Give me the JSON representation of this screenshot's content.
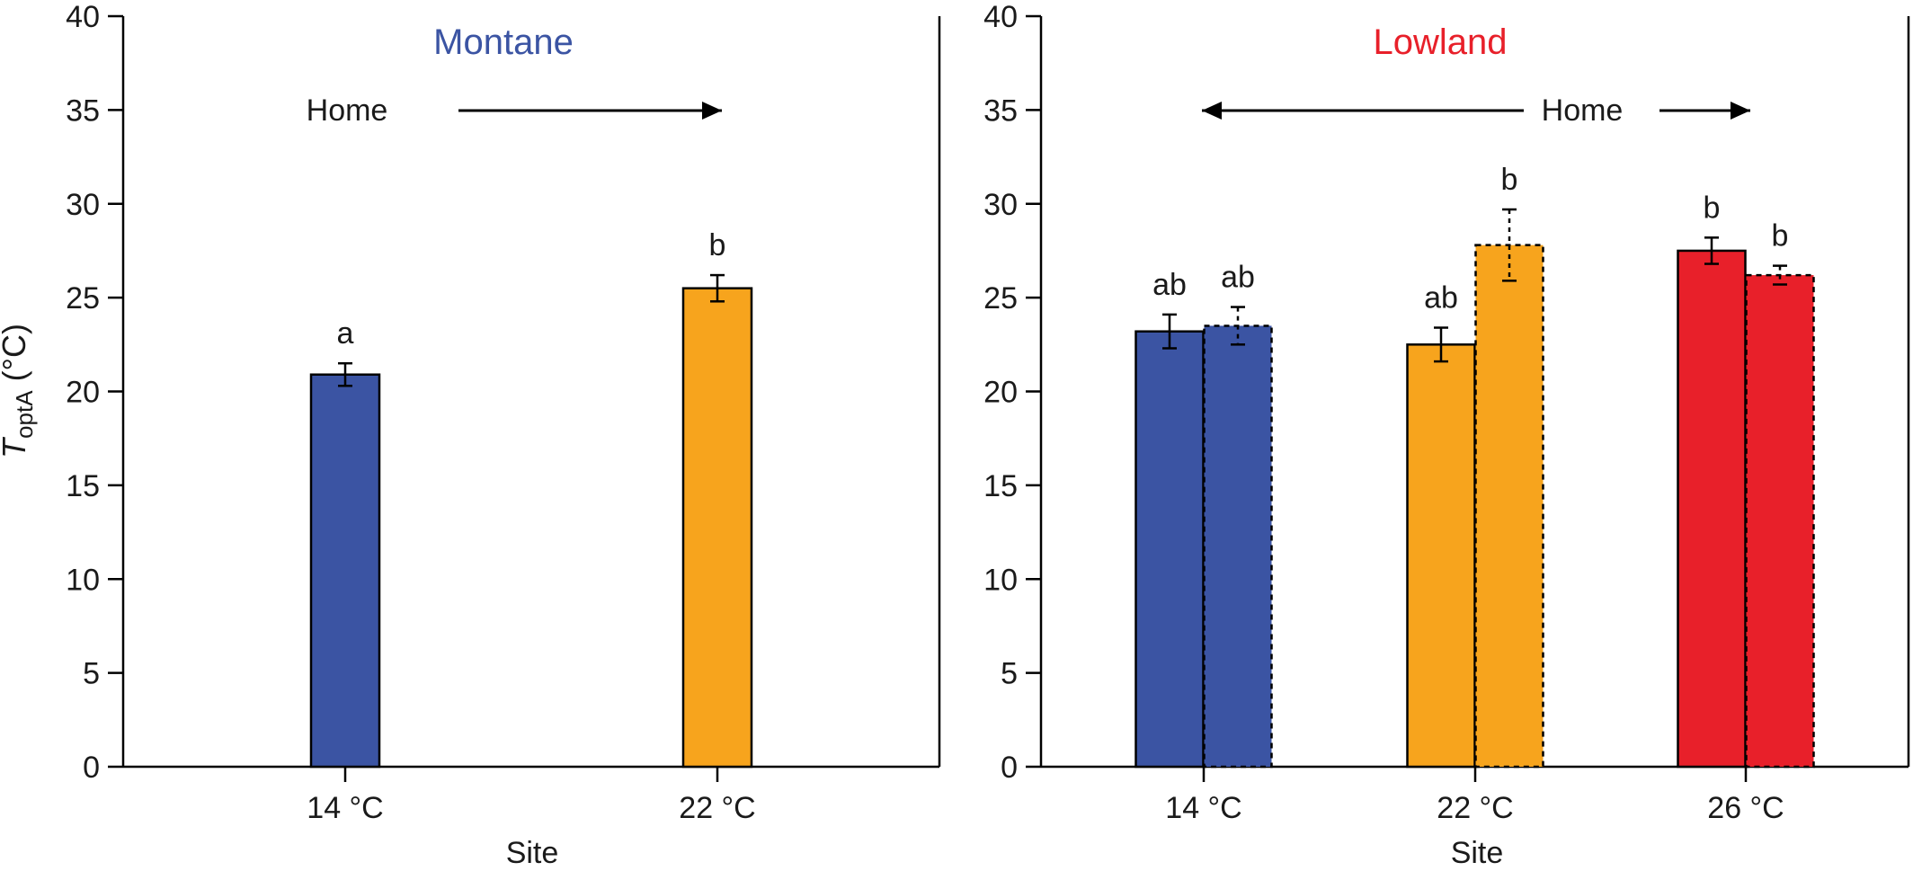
{
  "chart_data": [
    {
      "type": "bar",
      "title": "Montane",
      "title_color": "#3b54a3",
      "xlabel": "Site",
      "ylabel_main": "T",
      "ylabel_sub": "optA",
      "ylabel_unit": "(°C)",
      "ylim": [
        0,
        40
      ],
      "yticks": [
        "0",
        "5",
        "10",
        "15",
        "20",
        "25",
        "30",
        "35",
        "40"
      ],
      "categories": [
        "14 °C",
        "22 °C"
      ],
      "home_label": "Home",
      "home_arrow": "right",
      "series": [
        {
          "style": "solid",
          "values": [
            20.9,
            25.5
          ],
          "errors": [
            0.6,
            0.7
          ],
          "letters": [
            "a",
            "b"
          ],
          "colors": [
            "#3b54a3",
            "#f7a41d"
          ]
        }
      ]
    },
    {
      "type": "bar",
      "title": "Lowland",
      "title_color": "#e8202a",
      "xlabel": "Site",
      "ylim": [
        0,
        40
      ],
      "yticks": [
        "0",
        "5",
        "10",
        "15",
        "20",
        "25",
        "30",
        "35",
        "40"
      ],
      "categories": [
        "14 °C",
        "22 °C",
        "26 °C"
      ],
      "home_label": "Home",
      "home_arrow": "both",
      "series": [
        {
          "style": "solid",
          "values": [
            23.2,
            22.5,
            27.5
          ],
          "errors": [
            0.9,
            0.9,
            0.7
          ],
          "letters": [
            "ab",
            "ab",
            "b"
          ],
          "colors": [
            "#3b54a3",
            "#f7a41d",
            "#e8202a"
          ]
        },
        {
          "style": "dashed",
          "values": [
            23.5,
            27.8,
            26.2
          ],
          "errors": [
            1.0,
            1.9,
            0.5
          ],
          "letters": [
            "ab",
            "b",
            "b"
          ],
          "colors": [
            "#3b54a3",
            "#f7a41d",
            "#e8202a"
          ]
        }
      ]
    }
  ]
}
